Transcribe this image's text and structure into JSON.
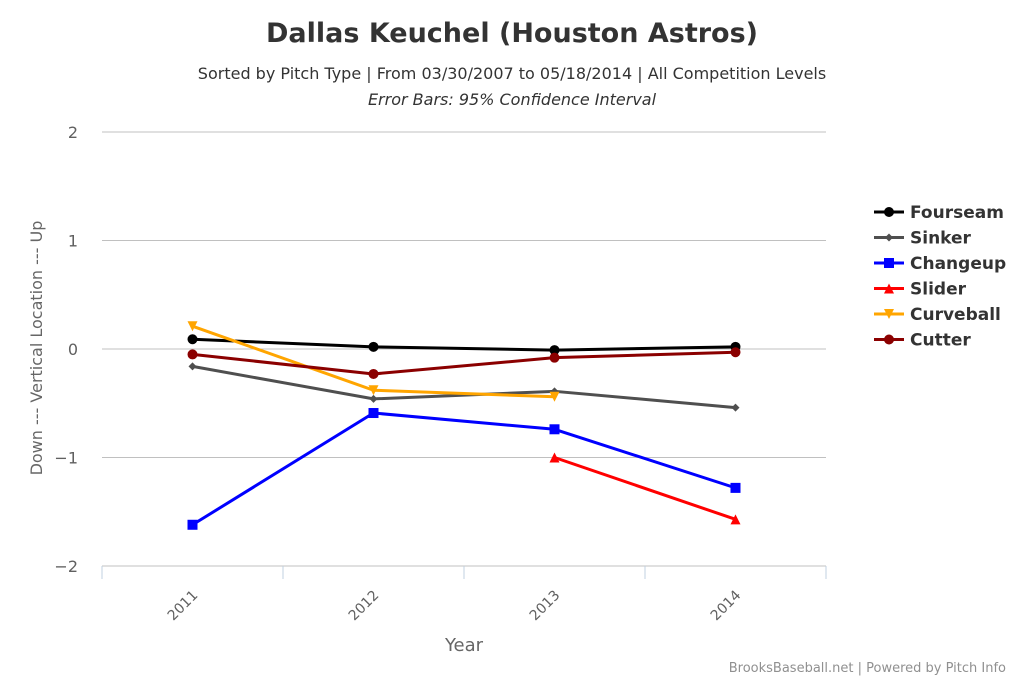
{
  "chart_data": {
    "type": "line",
    "title": "Dallas Keuchel (Houston Astros)",
    "subtitle": "Sorted by Pitch Type | From 03/30/2007 to 05/18/2014 | All Competition Levels",
    "subtitle2": "Error Bars: 95% Confidence Interval",
    "xlabel": "Year",
    "ylabel": "Down --- Vertical Location --- Up",
    "categories": [
      "2011",
      "2012",
      "2013",
      "2014"
    ],
    "ylim": [
      -2,
      2
    ],
    "yticks": [
      "2",
      "1",
      "0",
      "−1",
      "−2"
    ],
    "ytick_values": [
      2,
      1,
      0,
      -1,
      -2
    ],
    "grid": true,
    "legend_position": "right",
    "credits": "BrooksBaseball.net | Powered by Pitch Info",
    "series": [
      {
        "name": "Fourseam",
        "color": "#000000",
        "marker": "circle",
        "values": [
          0.09,
          0.02,
          -0.01,
          0.02
        ]
      },
      {
        "name": "Sinker",
        "color": "#4f4f4f",
        "marker": "diamond",
        "values": [
          -0.16,
          -0.46,
          -0.39,
          -0.54
        ]
      },
      {
        "name": "Changeup",
        "color": "#0000ff",
        "marker": "square",
        "values": [
          -1.62,
          -0.59,
          -0.74,
          -1.28
        ]
      },
      {
        "name": "Slider",
        "color": "#ff0000",
        "marker": "triangle",
        "values": [
          null,
          null,
          -1.0,
          -1.57
        ]
      },
      {
        "name": "Curveball",
        "color": "#ffa500",
        "marker": "triangle-down",
        "values": [
          0.21,
          -0.38,
          -0.44,
          null
        ]
      },
      {
        "name": "Cutter",
        "color": "#8b0000",
        "marker": "circle",
        "values": [
          -0.05,
          -0.23,
          -0.08,
          -0.03
        ]
      }
    ]
  }
}
